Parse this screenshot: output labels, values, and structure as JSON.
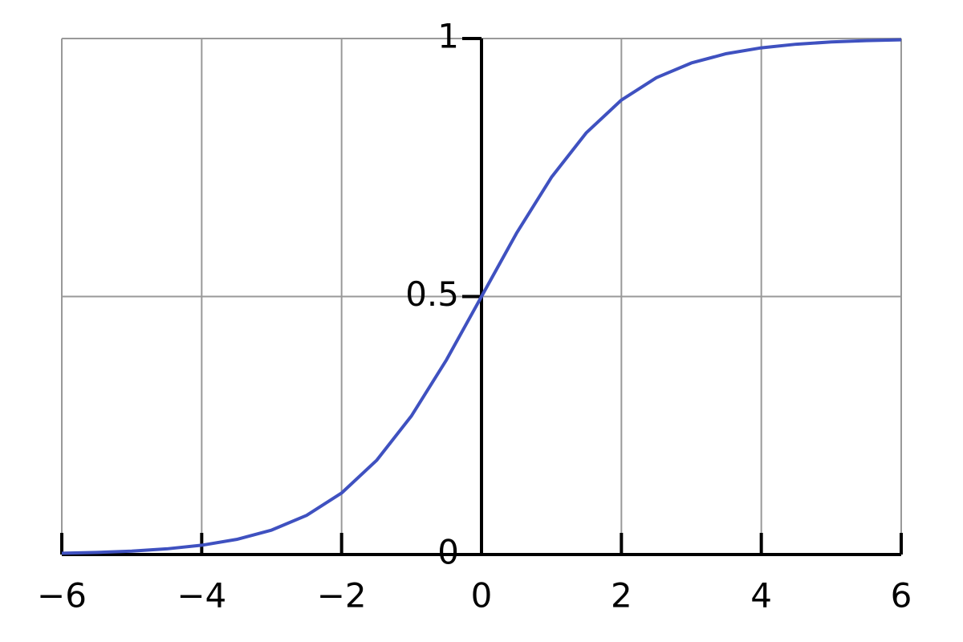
{
  "chart_data": {
    "type": "line",
    "x": [
      -6,
      -5.5,
      -5,
      -4.5,
      -4,
      -3.5,
      -3,
      -2.5,
      -2,
      -1.5,
      -1,
      -0.5,
      0,
      0.5,
      1,
      1.5,
      2,
      2.5,
      3,
      3.5,
      4,
      4.5,
      5,
      5.5,
      6
    ],
    "values": [
      0.0025,
      0.0041,
      0.0067,
      0.011,
      0.018,
      0.0293,
      0.0474,
      0.0759,
      0.1192,
      0.1824,
      0.2689,
      0.3775,
      0.5,
      0.6225,
      0.7311,
      0.8176,
      0.8808,
      0.9241,
      0.9526,
      0.9707,
      0.982,
      0.989,
      0.9933,
      0.9959,
      0.9975
    ],
    "color": "#3f51c0",
    "xlim": [
      -6,
      6
    ],
    "xticks": [
      {
        "value": -6,
        "label": "−6"
      },
      {
        "value": -4,
        "label": "−4"
      },
      {
        "value": -2,
        "label": "−2"
      },
      0,
      2,
      4,
      6
    ],
    "ylim": [
      0,
      1
    ],
    "yticks": [
      0,
      0.5,
      1
    ],
    "grid": true
  }
}
